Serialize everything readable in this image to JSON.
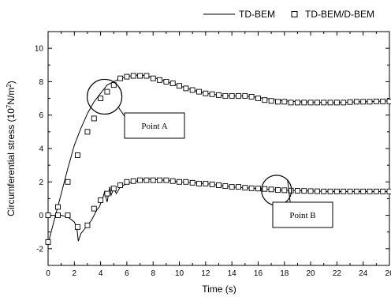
{
  "chart_data": {
    "type": "line",
    "title": "",
    "xlabel": "Time (s)",
    "ylabel_main": "Circumferential stress (10",
    "ylabel_sup1": "7",
    "ylabel_mid": "N/m",
    "ylabel_sup2": "2",
    "ylabel_end": ")",
    "xlim": [
      0,
      26
    ],
    "ylim": [
      -3,
      11
    ],
    "xticks": [
      0,
      2,
      4,
      6,
      8,
      10,
      12,
      14,
      16,
      18,
      20,
      22,
      24,
      26
    ],
    "yticks": [
      -2,
      0,
      2,
      4,
      6,
      8,
      10
    ],
    "grid": false,
    "legend": {
      "position": "top-right",
      "line_label": "TD-BEM",
      "marker_label": "TD-BEM/D-BEM"
    },
    "annotations": [
      {
        "label": "Point A",
        "x": 4.3,
        "y": 7.1
      },
      {
        "label": "Point B",
        "x": 17.4,
        "y": 1.5
      }
    ],
    "series": [
      {
        "name": "TD-BEM",
        "style": "line",
        "color": "#000000",
        "x": [
          0,
          0.5,
          1,
          1.5,
          2,
          2.5,
          3,
          3.5,
          4,
          4.5,
          5,
          5.5,
          6,
          6.5,
          7,
          7.5,
          8,
          8.5,
          9,
          10,
          11,
          12,
          13,
          14,
          15,
          16,
          17,
          18,
          19,
          20,
          21,
          22,
          23,
          24,
          25,
          26
        ],
        "y": [
          -1.7,
          -0.2,
          1.3,
          2.8,
          4.2,
          5.2,
          6.1,
          6.8,
          7.3,
          7.8,
          8.0,
          8.2,
          8.3,
          8.38,
          8.4,
          8.35,
          8.25,
          8.15,
          8.0,
          7.75,
          7.5,
          7.3,
          7.2,
          7.15,
          7.15,
          7.05,
          6.95,
          6.85,
          6.8,
          6.78,
          6.75,
          6.75,
          6.78,
          6.8,
          6.82,
          6.85
        ]
      },
      {
        "name": "TD-BEM (Point B)",
        "style": "line",
        "color": "#000000",
        "x": [
          0,
          0.5,
          1,
          1.5,
          2,
          2.2,
          2.3,
          2.5,
          2.8,
          3,
          3.3,
          3.5,
          3.7,
          3.9,
          4,
          4.2,
          4.3,
          4.5,
          4.7,
          4.8,
          5,
          5.2,
          5.5,
          6,
          6.5,
          7,
          7.5,
          8,
          9,
          10,
          11,
          12,
          13,
          14,
          15,
          16,
          17,
          18,
          19,
          20,
          21,
          22,
          23,
          24,
          25,
          26
        ],
        "y": [
          0,
          0,
          0,
          -0.1,
          -0.4,
          -0.8,
          -1.55,
          -1.1,
          -0.8,
          -0.6,
          -0.3,
          0.0,
          0.3,
          0.5,
          0.7,
          1.1,
          1.4,
          0.8,
          1.7,
          1.2,
          1.6,
          1.3,
          1.7,
          1.9,
          2.0,
          2.1,
          2.15,
          2.15,
          2.1,
          2.0,
          1.95,
          1.9,
          1.8,
          1.7,
          1.65,
          1.6,
          1.55,
          1.5,
          1.48,
          1.45,
          1.43,
          1.42,
          1.42,
          1.42,
          1.42,
          1.42
        ]
      },
      {
        "name": "TD-BEM/D-BEM",
        "style": "marker",
        "color": "#000000",
        "x": [
          0,
          0.75,
          1.5,
          2.25,
          3.0,
          3.5,
          4.0,
          4.5,
          5.0,
          5.5,
          6.0,
          6.5,
          7.0,
          7.5,
          8.0,
          8.5,
          9.0,
          9.5,
          10.0,
          10.5,
          11.0,
          11.5,
          12.0,
          12.5,
          13.0,
          13.5,
          14.0,
          14.5,
          15.0,
          15.5,
          16.0,
          16.5,
          17.0,
          17.5,
          18.0,
          18.5,
          19.0,
          19.5,
          20.0,
          20.5,
          21.0,
          21.5,
          22.0,
          22.5,
          23.0,
          23.5,
          24.0,
          24.5,
          25.0,
          25.5,
          26.0
        ],
        "y": [
          -1.6,
          0.5,
          2.0,
          3.6,
          5.0,
          5.8,
          7.0,
          7.4,
          7.8,
          8.2,
          8.3,
          8.35,
          8.35,
          8.35,
          8.2,
          8.1,
          8.0,
          7.9,
          7.75,
          7.6,
          7.5,
          7.4,
          7.3,
          7.25,
          7.2,
          7.15,
          7.15,
          7.15,
          7.15,
          7.1,
          7.0,
          6.9,
          6.85,
          6.8,
          6.8,
          6.75,
          6.75,
          6.75,
          6.75,
          6.75,
          6.75,
          6.75,
          6.75,
          6.75,
          6.78,
          6.8,
          6.8,
          6.8,
          6.82,
          6.82,
          6.82
        ]
      },
      {
        "name": "TD-BEM/D-BEM (Point B)",
        "style": "marker",
        "color": "#000000",
        "x": [
          0,
          0.75,
          1.5,
          2.25,
          3.0,
          3.5,
          4.0,
          4.5,
          5.0,
          5.5,
          6.0,
          6.5,
          7.0,
          7.5,
          8.0,
          8.5,
          9.0,
          9.5,
          10.0,
          10.5,
          11.0,
          11.5,
          12.0,
          12.5,
          13.0,
          13.5,
          14.0,
          14.5,
          15.0,
          15.5,
          16.0,
          16.5,
          17.0,
          17.5,
          18.0,
          18.5,
          19.0,
          19.5,
          20.0,
          20.5,
          21.0,
          21.5,
          22.0,
          22.5,
          23.0,
          23.5,
          24.0,
          24.5,
          25.0,
          25.5,
          26.0
        ],
        "y": [
          0,
          0,
          0,
          -0.7,
          -0.6,
          0.4,
          0.9,
          1.3,
          1.6,
          1.8,
          2.0,
          2.05,
          2.1,
          2.1,
          2.1,
          2.1,
          2.1,
          2.05,
          2.0,
          2.0,
          1.95,
          1.9,
          1.9,
          1.85,
          1.8,
          1.75,
          1.7,
          1.7,
          1.65,
          1.62,
          1.6,
          1.58,
          1.55,
          1.52,
          1.5,
          1.48,
          1.47,
          1.46,
          1.45,
          1.44,
          1.43,
          1.43,
          1.43,
          1.43,
          1.43,
          1.43,
          1.43,
          1.43,
          1.43,
          1.43,
          1.43
        ]
      }
    ]
  }
}
